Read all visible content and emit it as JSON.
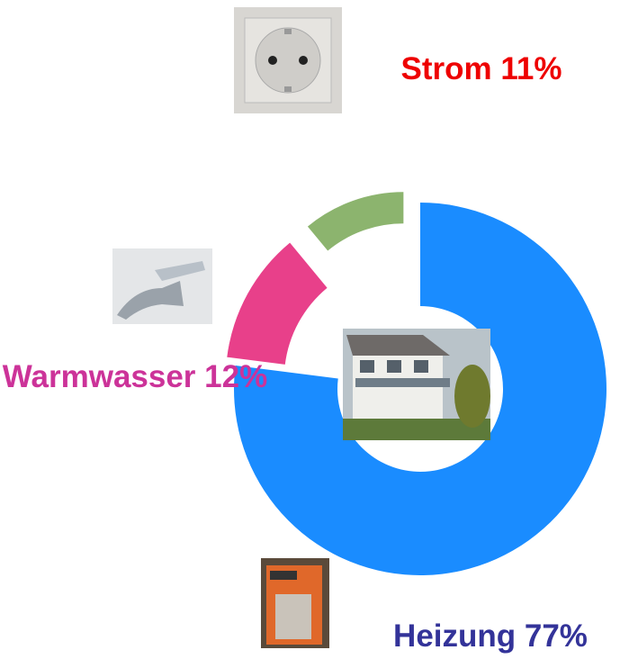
{
  "chart_data": {
    "type": "donut",
    "values": [
      77,
      12,
      11
    ],
    "value_labels": [
      "Heizung 77%",
      "Warmwasser 12%",
      "Strom 11%"
    ],
    "colors": [
      "#1a8cff",
      "#e8408a",
      "#8cb46e"
    ],
    "label_colors": [
      "#333399",
      "#cc3399",
      "#ee0000"
    ]
  }
}
